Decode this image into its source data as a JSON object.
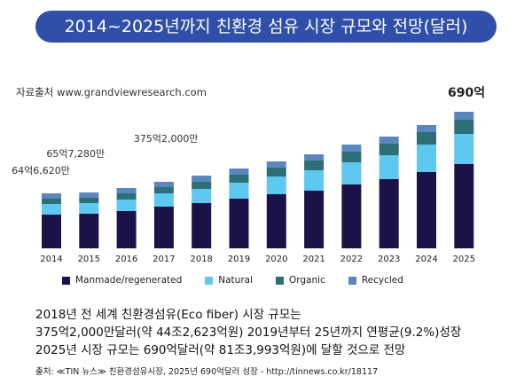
{
  "header": {
    "title": "2014~2025년까지 친환경 섬유 시장 규모와 전망(달러)"
  },
  "source_note": "자료출처 www.grandviewresearch.com",
  "colors": {
    "title_bg": "#2f4fa8",
    "manmade": "#1c1247",
    "natural": "#5ec8f0",
    "organic": "#2d6f74",
    "recycled": "#5b87c0"
  },
  "chart_data": {
    "type": "bar",
    "stacked": true,
    "categories": [
      "2014",
      "2015",
      "2016",
      "2017",
      "2018",
      "2019",
      "2020",
      "2021",
      "2022",
      "2023",
      "2024",
      "2025"
    ],
    "series": [
      {
        "name": "Manmade/regenerated",
        "values": [
          38,
          39,
          42,
          47,
          51,
          56,
          61,
          65,
          72,
          78,
          86,
          95
        ]
      },
      {
        "name": "Natural",
        "values": [
          12,
          12,
          13,
          15,
          16,
          18,
          20,
          23,
          25,
          27,
          31,
          34
        ]
      },
      {
        "name": "Organic",
        "values": [
          6,
          6,
          7,
          7,
          8,
          9,
          10,
          11,
          12,
          13,
          14,
          16
        ]
      },
      {
        "name": "Recycled",
        "values": [
          6,
          6,
          6,
          6,
          7,
          7,
          7,
          7,
          8,
          8,
          8,
          9
        ]
      }
    ],
    "annotations": [
      {
        "category": "2014",
        "text": "64억6,620만"
      },
      {
        "category": "2015",
        "text": "65억7,280만"
      },
      {
        "category": "2018",
        "text": "375억2,000만"
      },
      {
        "category": "2025",
        "text": "690억"
      }
    ],
    "legend": "bottom",
    "grid": false
  },
  "description": {
    "lines": [
      "2018년 전 세계 친환경섬유(Eco fiber) 시장 규모는",
      "375억2,000만달러(약 44조2,623억원) 2019년부터 25년까지 연평균(9.2%)성장",
      "2025년 시장 규모는 690억달러(약 81조3,993억원)에 달할 것으로 전망"
    ]
  },
  "footer": "출처: ≪TIN 뉴스≫ 친환경섬유시장, 2025년 690억달러 성장 - http://tinnews.co.kr/18117"
}
